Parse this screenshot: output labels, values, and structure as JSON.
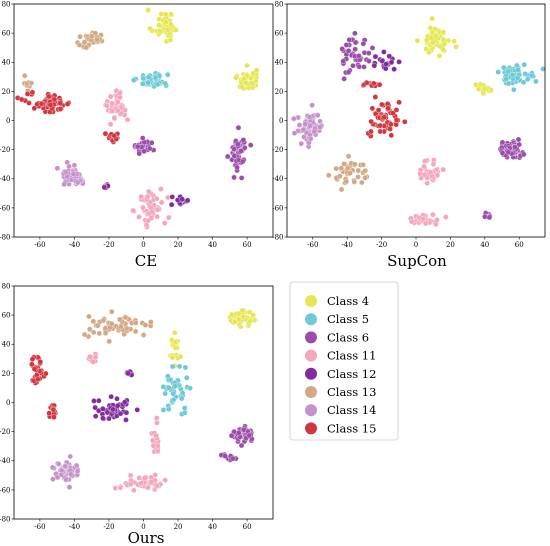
{
  "chart_data": [
    {
      "type": "scatter",
      "caption": "CE",
      "xlim": [
        -75,
        75
      ],
      "ylim": [
        -80,
        80
      ],
      "xticks": [
        -60,
        -40,
        -20,
        0,
        20,
        40,
        60
      ],
      "yticks": [
        -80,
        -60,
        -40,
        -20,
        0,
        20,
        40,
        60,
        80
      ],
      "clusters": [
        {
          "class": "Class 4",
          "center": [
            12,
            65
          ],
          "spread": [
            7,
            10
          ],
          "count": 40
        },
        {
          "class": "Class 4",
          "center": [
            60,
            28
          ],
          "spread": [
            5,
            7
          ],
          "count": 45
        },
        {
          "class": "Class 5",
          "center": [
            5,
            28
          ],
          "spread": [
            8,
            4
          ],
          "count": 55
        },
        {
          "class": "Class 6",
          "center": [
            55,
            -22
          ],
          "spread": [
            4,
            12
          ],
          "count": 55
        },
        {
          "class": "Class 6",
          "center": [
            0,
            -18
          ],
          "spread": [
            6,
            4
          ],
          "count": 25
        },
        {
          "class": "Class 11",
          "center": [
            -15,
            10
          ],
          "spread": [
            5,
            10
          ],
          "count": 40
        },
        {
          "class": "Class 11",
          "center": [
            5,
            -60
          ],
          "spread": [
            8,
            12
          ],
          "count": 45
        },
        {
          "class": "Class 12",
          "center": [
            22,
            -55
          ],
          "spread": [
            4,
            6
          ],
          "count": 15
        },
        {
          "class": "Class 12",
          "center": [
            -22,
            -45
          ],
          "spread": [
            2,
            2
          ],
          "count": 6
        },
        {
          "class": "Class 13",
          "center": [
            -30,
            55
          ],
          "spread": [
            8,
            5
          ],
          "count": 35
        },
        {
          "class": "Class 13",
          "center": [
            -68,
            25
          ],
          "spread": [
            3,
            4
          ],
          "count": 8
        },
        {
          "class": "Class 14",
          "center": [
            -40,
            -38
          ],
          "spread": [
            7,
            6
          ],
          "count": 55
        },
        {
          "class": "Class 15",
          "center": [
            -55,
            12
          ],
          "spread": [
            12,
            6
          ],
          "count": 60
        },
        {
          "class": "Class 15",
          "center": [
            -18,
            -12
          ],
          "spread": [
            4,
            3
          ],
          "count": 12
        }
      ]
    },
    {
      "type": "scatter",
      "caption": "SupCon",
      "xlim": [
        -75,
        75
      ],
      "ylim": [
        -80,
        80
      ],
      "xticks": [
        -60,
        -40,
        -20,
        0,
        20,
        40,
        60
      ],
      "yticks": [
        -80,
        -60,
        -40,
        -20,
        0,
        20,
        40,
        60,
        80
      ],
      "clusters": [
        {
          "class": "Class 4",
          "center": [
            12,
            55
          ],
          "spread": [
            7,
            9
          ],
          "count": 55
        },
        {
          "class": "Class 4",
          "center": [
            40,
            22
          ],
          "spread": [
            6,
            3
          ],
          "count": 15
        },
        {
          "class": "Class 5",
          "center": [
            58,
            32
          ],
          "spread": [
            10,
            6
          ],
          "count": 50
        },
        {
          "class": "Class 6",
          "center": [
            55,
            -20
          ],
          "spread": [
            6,
            5
          ],
          "count": 60
        },
        {
          "class": "Class 6",
          "center": [
            -35,
            45
          ],
          "spread": [
            8,
            12
          ],
          "count": 40
        },
        {
          "class": "Class 6",
          "center": [
            42,
            -65
          ],
          "spread": [
            2,
            3
          ],
          "count": 10
        },
        {
          "class": "Class 11",
          "center": [
            8,
            -35
          ],
          "spread": [
            5,
            8
          ],
          "count": 35
        },
        {
          "class": "Class 11",
          "center": [
            5,
            -68
          ],
          "spread": [
            10,
            3
          ],
          "count": 30
        },
        {
          "class": "Class 12",
          "center": [
            -18,
            40
          ],
          "spread": [
            8,
            5
          ],
          "count": 20
        },
        {
          "class": "Class 13",
          "center": [
            -38,
            -35
          ],
          "spread": [
            10,
            8
          ],
          "count": 40
        },
        {
          "class": "Class 14",
          "center": [
            -62,
            -5
          ],
          "spread": [
            8,
            10
          ],
          "count": 60
        },
        {
          "class": "Class 15",
          "center": [
            -18,
            0
          ],
          "spread": [
            8,
            12
          ],
          "count": 55
        },
        {
          "class": "Class 15",
          "center": [
            -25,
            25
          ],
          "spread": [
            5,
            2
          ],
          "count": 10
        }
      ]
    },
    {
      "type": "scatter",
      "caption": "Ours",
      "xlim": [
        -75,
        75
      ],
      "ylim": [
        -80,
        80
      ],
      "xticks": [
        -60,
        -40,
        -20,
        0,
        20,
        40,
        60
      ],
      "yticks": [
        -80,
        -60,
        -40,
        -20,
        0,
        20,
        40,
        60,
        80
      ],
      "clusters": [
        {
          "class": "Class 4",
          "center": [
            55,
            58
          ],
          "spread": [
            6,
            4
          ],
          "count": 55
        },
        {
          "class": "Class 4",
          "center": [
            18,
            35
          ],
          "spread": [
            3,
            12
          ],
          "count": 25
        },
        {
          "class": "Class 5",
          "center": [
            20,
            10
          ],
          "spread": [
            7,
            12
          ],
          "count": 40
        },
        {
          "class": "Class 6",
          "center": [
            57,
            -22
          ],
          "spread": [
            5,
            6
          ],
          "count": 55
        },
        {
          "class": "Class 6",
          "center": [
            50,
            -38
          ],
          "spread": [
            4,
            2
          ],
          "count": 10
        },
        {
          "class": "Class 11",
          "center": [
            0,
            -55
          ],
          "spread": [
            12,
            4
          ],
          "count": 45
        },
        {
          "class": "Class 11",
          "center": [
            8,
            -25
          ],
          "spread": [
            3,
            10
          ],
          "count": 20
        },
        {
          "class": "Class 11",
          "center": [
            -30,
            30
          ],
          "spread": [
            3,
            4
          ],
          "count": 10
        },
        {
          "class": "Class 12",
          "center": [
            -18,
            -5
          ],
          "spread": [
            10,
            7
          ],
          "count": 45
        },
        {
          "class": "Class 12",
          "center": [
            -8,
            20
          ],
          "spread": [
            2,
            2
          ],
          "count": 8
        },
        {
          "class": "Class 13",
          "center": [
            -15,
            52
          ],
          "spread": [
            18,
            6
          ],
          "count": 55
        },
        {
          "class": "Class 14",
          "center": [
            -45,
            -48
          ],
          "spread": [
            7,
            6
          ],
          "count": 60
        },
        {
          "class": "Class 15",
          "center": [
            -62,
            22
          ],
          "spread": [
            4,
            10
          ],
          "count": 30
        },
        {
          "class": "Class 15",
          "center": [
            -52,
            -5
          ],
          "spread": [
            3,
            4
          ],
          "count": 12
        }
      ]
    }
  ],
  "legend": [
    {
      "label": "Class 4",
      "color": "#e6e650"
    },
    {
      "label": "Class 5",
      "color": "#6dc9d6"
    },
    {
      "label": "Class 6",
      "color": "#9a4daa"
    },
    {
      "label": "Class 11",
      "color": "#f4a6bb"
    },
    {
      "label": "Class 12",
      "color": "#822c9e"
    },
    {
      "label": "Class 13",
      "color": "#d3a884"
    },
    {
      "label": "Class 14",
      "color": "#c592c9"
    },
    {
      "label": "Class 15",
      "color": "#d2363f"
    }
  ]
}
